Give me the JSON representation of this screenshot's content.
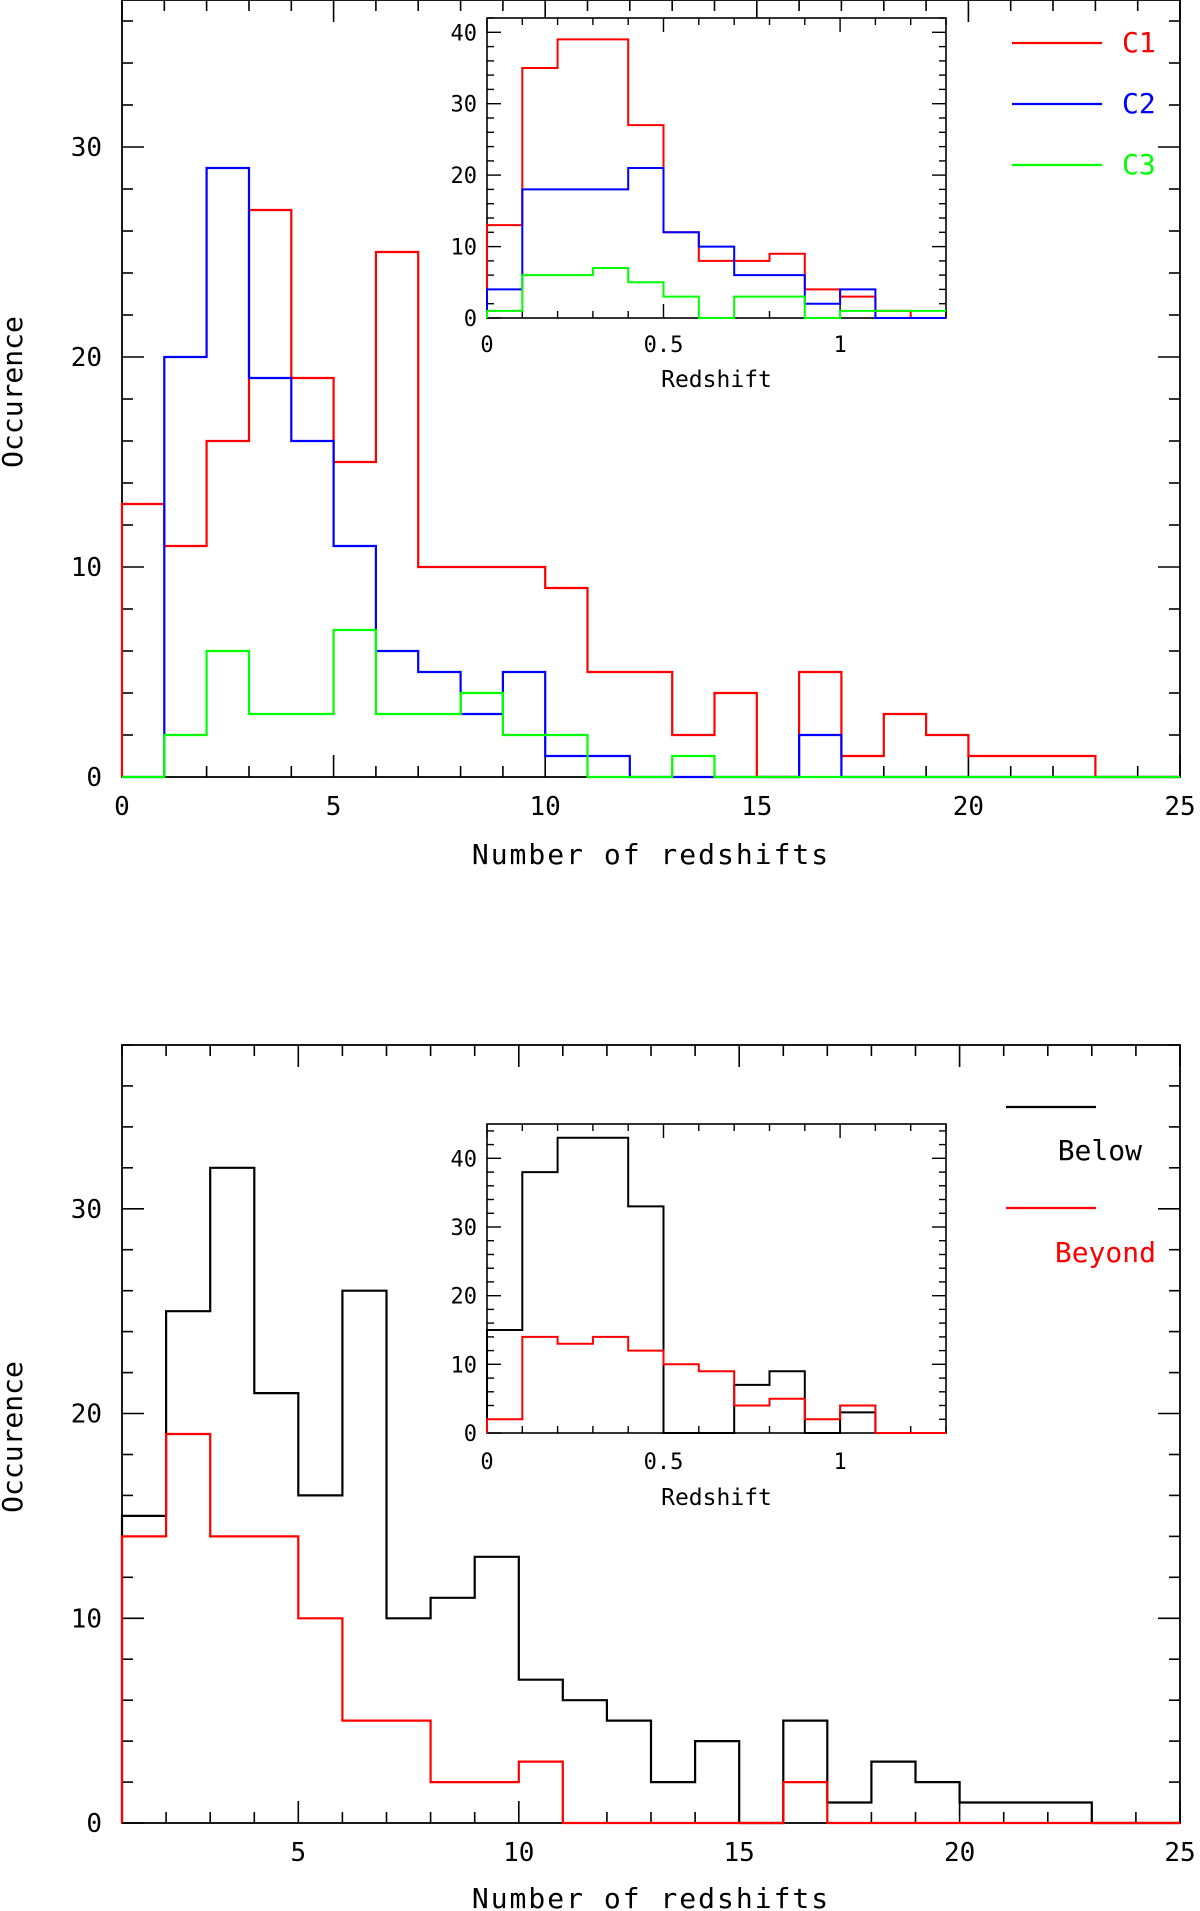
{
  "chart_data": [
    {
      "type": "histogram",
      "xlabel": "Number of redshifts",
      "ylabel": "Occurence",
      "xlim": [
        0,
        25
      ],
      "ylim": [
        0,
        37
      ],
      "xticks": [
        "0",
        "5",
        "10",
        "15",
        "20",
        "25"
      ],
      "yticks": [
        "0",
        "10",
        "20",
        "30"
      ],
      "series": [
        {
          "name": "C1",
          "color": "#ff0000",
          "bin_start": 0,
          "bin_width": 1,
          "values": [
            13,
            11,
            16,
            27,
            19,
            15,
            25,
            10,
            10,
            10,
            9,
            5,
            5,
            2,
            4,
            0,
            5,
            1,
            3,
            2,
            1,
            1,
            1,
            0,
            0
          ]
        },
        {
          "name": "C2",
          "color": "#0000ff",
          "bin_start": 0,
          "bin_width": 1,
          "values": [
            0,
            20,
            29,
            19,
            16,
            11,
            6,
            5,
            3,
            5,
            1,
            1,
            0,
            0,
            0,
            0,
            2,
            0,
            0,
            0,
            0,
            0,
            0,
            0,
            0
          ]
        },
        {
          "name": "C3",
          "color": "#00ff00",
          "bin_start": 0,
          "bin_width": 1,
          "values": [
            0,
            2,
            6,
            3,
            3,
            7,
            3,
            3,
            4,
            2,
            2,
            0,
            0,
            1,
            0,
            0,
            0,
            0,
            0,
            0,
            0,
            0,
            0,
            0,
            0
          ]
        }
      ],
      "legend": [
        {
          "label": "C1",
          "color": "#ff0000"
        },
        {
          "label": "C2",
          "color": "#0000ff"
        },
        {
          "label": "C3",
          "color": "#00ff00"
        }
      ],
      "legend_position": "top-right",
      "inset": {
        "xlabel": "Redshift",
        "xlim": [
          0,
          1.3
        ],
        "ylim": [
          0,
          42
        ],
        "xticks": [
          {
            "v": 0,
            "label": "0"
          },
          {
            "v": 0.5,
            "label": "0.5"
          },
          {
            "v": 1,
            "label": "1"
          }
        ],
        "yticks": [
          "0",
          "10",
          "20",
          "30",
          "40"
        ],
        "series": [
          {
            "name": "C1",
            "color": "#ff0000",
            "bin_start": 0,
            "bin_width": 0.1,
            "values": [
              13,
              35,
              39,
              39,
              27,
              12,
              8,
              8,
              9,
              4,
              3,
              1,
              0
            ]
          },
          {
            "name": "C2",
            "color": "#0000ff",
            "bin_start": 0,
            "bin_width": 0.1,
            "values": [
              4,
              18,
              18,
              18,
              21,
              12,
              10,
              6,
              6,
              2,
              4,
              0,
              0
            ]
          },
          {
            "name": "C3",
            "color": "#00ff00",
            "bin_start": 0,
            "bin_width": 0.1,
            "values": [
              1,
              6,
              6,
              7,
              5,
              3,
              0,
              3,
              3,
              0,
              1,
              1,
              1
            ]
          }
        ]
      }
    },
    {
      "type": "histogram",
      "xlabel": "Number of redshifts",
      "ylabel": "Occurence",
      "xlim": [
        1,
        25
      ],
      "ylim": [
        0,
        38
      ],
      "xticks": [
        "5",
        "10",
        "15",
        "20",
        "25"
      ],
      "yticks": [
        "0",
        "10",
        "20",
        "30"
      ],
      "series": [
        {
          "name": "Below",
          "color": "#000000",
          "bin_start": 1,
          "bin_width": 1,
          "values": [
            15,
            25,
            32,
            21,
            16,
            26,
            10,
            11,
            13,
            7,
            6,
            5,
            2,
            4,
            0,
            5,
            1,
            3,
            2,
            1,
            1,
            1,
            0,
            0
          ]
        },
        {
          "name": "Beyond",
          "color": "#ff0000",
          "bin_start": 1,
          "bin_width": 1,
          "values": [
            14,
            19,
            14,
            14,
            10,
            5,
            5,
            2,
            2,
            3,
            0,
            0,
            0,
            0,
            0,
            2,
            0,
            0,
            0,
            0,
            0,
            0,
            0,
            0
          ]
        }
      ],
      "legend": [
        {
          "label": "Below",
          "color": "#000000"
        },
        {
          "label": "Beyond",
          "color": "#ff0000"
        }
      ],
      "legend_position": "top-right",
      "inset": {
        "xlabel": "Redshift",
        "xlim": [
          0,
          1.3
        ],
        "ylim": [
          0,
          45
        ],
        "xticks": [
          {
            "v": 0,
            "label": "0"
          },
          {
            "v": 0.5,
            "label": "0.5"
          },
          {
            "v": 1,
            "label": "1"
          }
        ],
        "yticks": [
          "0",
          "10",
          "20",
          "30",
          "40"
        ],
        "series": [
          {
            "name": "Below",
            "color": "#000000",
            "bin_start": 0,
            "bin_width": 0.1,
            "values": [
              15,
              38,
              43,
              43,
              33,
              0,
              0,
              7,
              9,
              0,
              3,
              0,
              0
            ]
          },
          {
            "name": "Beyond",
            "color": "#ff0000",
            "bin_start": 0,
            "bin_width": 0.1,
            "values": [
              2,
              14,
              13,
              14,
              12,
              10,
              9,
              4,
              5,
              2,
              4,
              0,
              0
            ]
          }
        ]
      }
    }
  ]
}
